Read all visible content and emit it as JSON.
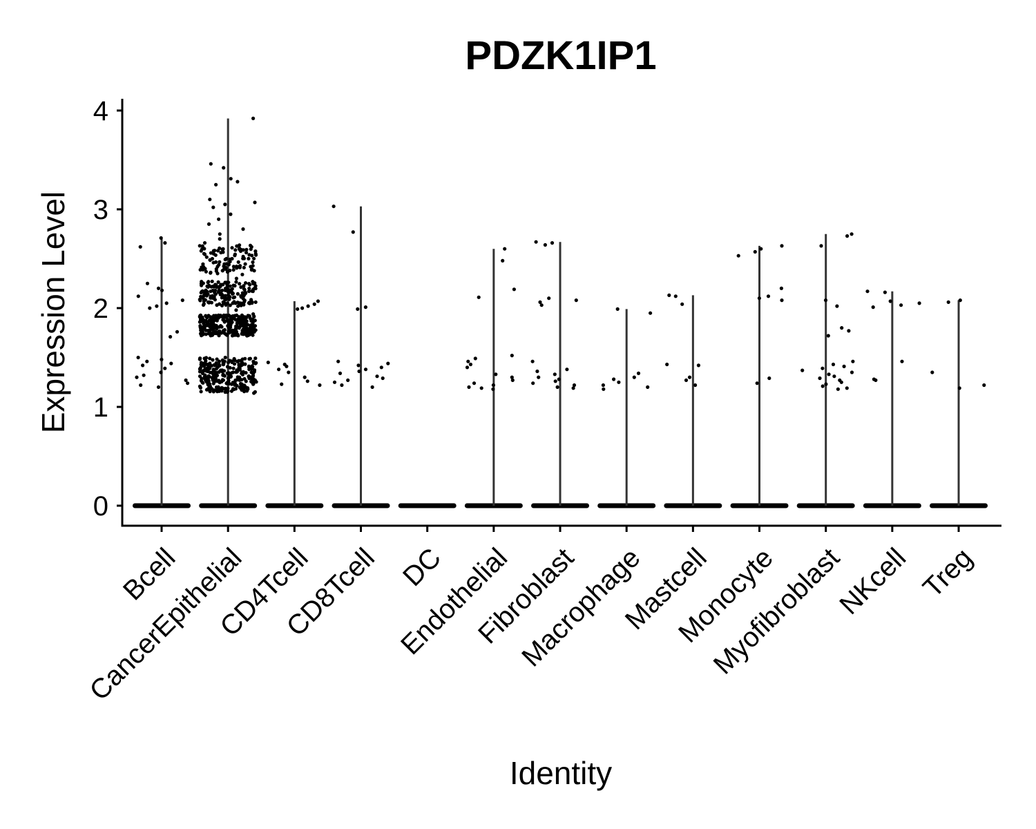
{
  "chart_data": {
    "type": "scatter",
    "subtype": "violin-jitter",
    "title": "PDZK1IP1",
    "xlabel": "Identity",
    "ylabel": "Expression Level",
    "ylim": [
      -0.2,
      4.1
    ],
    "yticks": [
      0,
      1,
      2,
      3,
      4
    ],
    "grid": false,
    "legend": "none",
    "categories": [
      "Bcell",
      "CancerEpithelial",
      "CD4Tcell",
      "CD8Tcell",
      "DC",
      "Endothelial",
      "Fibroblast",
      "Macrophage",
      "Mastcell",
      "Monocyte",
      "Myofibroblast",
      "NKcell",
      "Treg"
    ],
    "max_expression": [
      2.71,
      3.92,
      2.07,
      3.03,
      0,
      2.6,
      2.67,
      1.99,
      2.13,
      2.63,
      2.75,
      2.17,
      2.08
    ],
    "nonzero_points": [
      [
        2.71,
        2.66,
        2.62,
        2.25,
        2.2,
        2.18,
        2.12,
        2.08,
        2.05,
        2.02,
        2.0,
        1.76,
        1.71,
        1.5,
        1.48,
        1.46,
        1.44,
        1.42,
        1.39,
        1.35,
        1.32,
        1.3,
        1.27,
        1.24,
        1.22,
        1.2
      ],
      [
        3.92,
        3.46,
        3.42,
        3.31,
        3.28,
        3.25,
        3.1,
        3.07,
        3.05,
        3.02,
        2.95,
        2.9,
        2.85,
        2.8,
        2.75,
        2.7,
        2.66,
        2.62,
        2.58,
        2.54,
        2.5,
        2.46,
        2.42,
        2.38,
        2.34,
        2.3,
        2.26,
        2.22,
        2.18,
        2.14,
        2.1,
        2.06,
        2.02,
        1.98,
        1.94,
        1.9,
        1.86,
        1.82,
        1.78,
        1.74,
        1.5,
        1.46,
        1.42,
        1.38,
        1.34,
        1.3,
        1.26,
        1.22,
        1.18,
        1.14
      ],
      [
        2.07,
        2.04,
        2.02,
        2.0,
        1.99,
        1.45,
        1.43,
        1.41,
        1.38,
        1.35,
        1.3,
        1.26,
        1.23,
        1.22
      ],
      [
        3.03,
        2.77,
        2.01,
        1.99,
        1.46,
        1.44,
        1.42,
        1.4,
        1.38,
        1.36,
        1.34,
        1.31,
        1.29,
        1.27,
        1.25,
        1.22,
        1.2
      ],
      [],
      [
        2.6,
        2.48,
        2.19,
        2.11,
        1.52,
        1.49,
        1.46,
        1.43,
        1.4,
        1.33,
        1.3,
        1.27,
        1.24,
        1.22,
        1.2,
        1.19,
        1.18
      ],
      [
        2.67,
        2.66,
        2.64,
        2.1,
        2.08,
        2.06,
        2.03,
        1.46,
        1.38,
        1.36,
        1.33,
        1.3,
        1.28,
        1.26,
        1.24,
        1.22,
        1.2,
        1.19
      ],
      [
        1.99,
        1.95,
        1.34,
        1.3,
        1.28,
        1.25,
        1.22,
        1.2,
        1.18
      ],
      [
        2.13,
        2.12,
        2.04,
        1.43,
        1.42,
        1.3,
        1.27,
        1.22
      ],
      [
        2.63,
        2.6,
        2.57,
        2.53,
        2.2,
        2.12,
        2.1,
        2.08,
        1.29,
        1.24
      ],
      [
        2.75,
        2.73,
        2.63,
        2.08,
        2.02,
        1.8,
        1.77,
        1.72,
        1.46,
        1.43,
        1.41,
        1.39,
        1.37,
        1.35,
        1.33,
        1.31,
        1.29,
        1.27,
        1.25,
        1.23,
        1.21,
        1.19,
        1.18
      ],
      [
        2.17,
        2.16,
        2.07,
        2.05,
        2.03,
        2.01,
        1.46,
        1.28,
        1.27
      ],
      [
        2.08,
        2.06,
        1.35,
        1.22,
        1.19
      ]
    ]
  }
}
